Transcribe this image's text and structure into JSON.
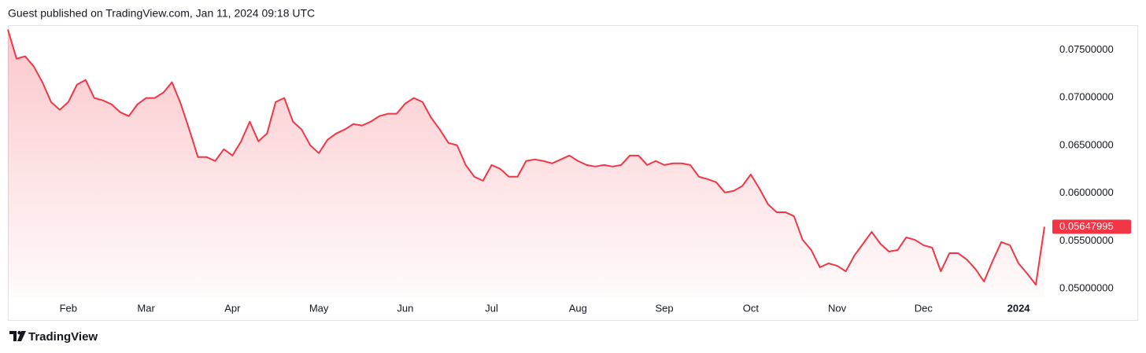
{
  "header": "Guest published on TradingView.com, Jan 11, 2024 09:18 UTC",
  "footer": "TradingView",
  "chart_data": {
    "type": "area-line",
    "color": "#f23645",
    "grid": false,
    "categories": [
      null,
      null,
      null,
      null,
      null,
      null,
      null,
      "Feb",
      null,
      null,
      null,
      null,
      null,
      null,
      null,
      null,
      "Mar",
      null,
      null,
      null,
      null,
      null,
      null,
      null,
      null,
      null,
      "Apr",
      null,
      null,
      null,
      null,
      null,
      null,
      null,
      null,
      null,
      "May",
      null,
      null,
      null,
      null,
      null,
      null,
      null,
      null,
      null,
      "Jun",
      null,
      null,
      null,
      null,
      null,
      null,
      null,
      null,
      null,
      "Jul",
      null,
      null,
      null,
      null,
      null,
      null,
      null,
      null,
      null,
      "Aug",
      null,
      null,
      null,
      null,
      null,
      null,
      null,
      null,
      null,
      "Sep",
      null,
      null,
      null,
      null,
      null,
      null,
      null,
      null,
      null,
      "Oct",
      null,
      null,
      null,
      null,
      null,
      null,
      null,
      null,
      null,
      "Nov",
      null,
      null,
      null,
      null,
      null,
      null,
      null,
      null,
      null,
      "Dec",
      null,
      null,
      null,
      null,
      null,
      null,
      null,
      null,
      null,
      null,
      "2024",
      null,
      null,
      null
    ],
    "values": [
      0.07715,
      0.07409,
      0.07434,
      0.07327,
      0.07162,
      0.06955,
      0.06873,
      0.06955,
      0.07137,
      0.07186,
      0.06997,
      0.06972,
      0.06931,
      0.06848,
      0.06807,
      0.06931,
      0.06997,
      0.06997,
      0.07054,
      0.07162,
      0.06939,
      0.06667,
      0.06378,
      0.06378,
      0.06337,
      0.0646,
      0.06394,
      0.06543,
      0.06749,
      0.06543,
      0.06625,
      0.06955,
      0.06997,
      0.06749,
      0.06667,
      0.06502,
      0.06419,
      0.06559,
      0.06625,
      0.06667,
      0.06724,
      0.06708,
      0.06749,
      0.06807,
      0.06832,
      0.06832,
      0.06939,
      0.06997,
      0.06955,
      0.0679,
      0.06667,
      0.06526,
      0.06502,
      0.06295,
      0.06172,
      0.0613,
      0.06295,
      0.06254,
      0.06172,
      0.06172,
      0.06337,
      0.06353,
      0.06337,
      0.06312,
      0.06353,
      0.06394,
      0.06337,
      0.06295,
      0.06279,
      0.06295,
      0.06279,
      0.06295,
      0.06394,
      0.06394,
      0.06295,
      0.06337,
      0.06295,
      0.06312,
      0.06312,
      0.06295,
      0.06172,
      0.06147,
      0.06114,
      0.06007,
      0.06023,
      0.06073,
      0.06196,
      0.06048,
      0.05883,
      0.058,
      0.058,
      0.05759,
      0.05511,
      0.05404,
      0.05223,
      0.05264,
      0.05239,
      0.05181,
      0.05347,
      0.0547,
      0.05594,
      0.0547,
      0.05388,
      0.05404,
      0.05536,
      0.05511,
      0.05454,
      0.05429,
      0.05181,
      0.05371,
      0.05371,
      0.05305,
      0.05206,
      0.05074,
      0.05289,
      0.05487,
      0.05454,
      0.05264,
      0.05157,
      0.05041,
      0.05647995
    ],
    "ylim": [
      0.0491,
      0.0776
    ],
    "yticks": [
      {
        "value": 0.05,
        "label": "0.05000000"
      },
      {
        "value": 0.055,
        "label": "0.05500000"
      },
      {
        "value": 0.06,
        "label": "0.06000000"
      },
      {
        "value": 0.065,
        "label": "0.06500000"
      },
      {
        "value": 0.07,
        "label": "0.07000000"
      },
      {
        "value": 0.075,
        "label": "0.07500000"
      }
    ]
  }
}
